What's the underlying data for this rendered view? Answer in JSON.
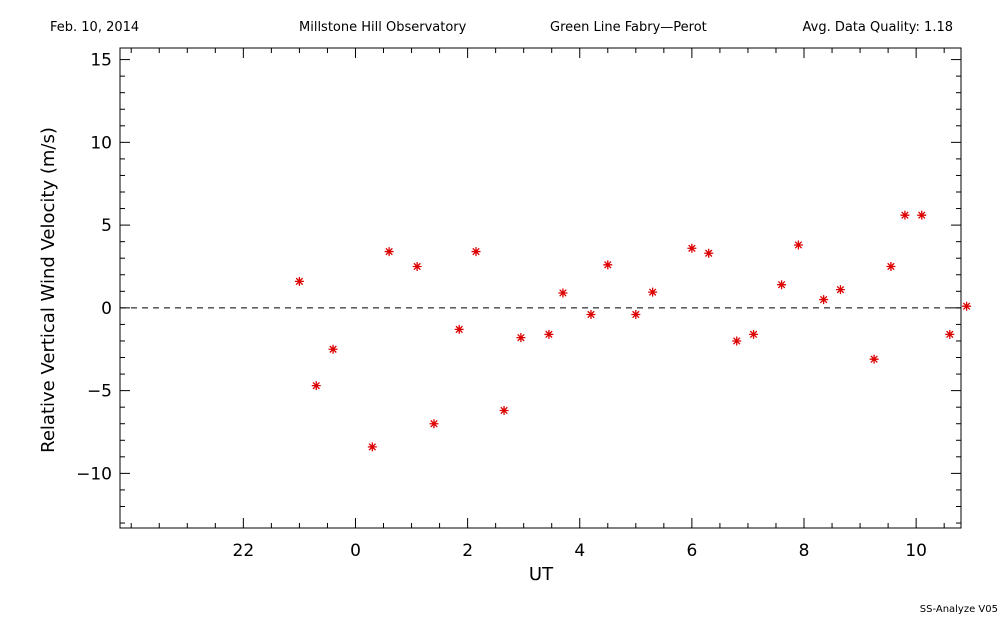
{
  "header": {
    "date": "Feb. 10, 2014",
    "observatory": "Millstone Hill Observatory",
    "instrument": "Green Line Fabry—Perot",
    "quality": "Avg. Data Quality: 1.18"
  },
  "footer": {
    "version": "SS-Analyze V05"
  },
  "chart_data": {
    "type": "scatter",
    "xlabel": "UT",
    "ylabel": "Relative Vertical Wind Velocity (m/s)",
    "xlim": [
      -2.2,
      12.8
    ],
    "ylim": [
      -13.3,
      15.7
    ],
    "x_ticks": [
      {
        "value": 0,
        "label": "22"
      },
      {
        "value": 2,
        "label": "0"
      },
      {
        "value": 4,
        "label": "2"
      },
      {
        "value": 6,
        "label": "4"
      },
      {
        "value": 8,
        "label": "6"
      },
      {
        "value": 10,
        "label": "8"
      },
      {
        "value": 12,
        "label": "10"
      }
    ],
    "y_ticks": [
      {
        "value": -10,
        "label": "−10"
      },
      {
        "value": -5,
        "label": "−5"
      },
      {
        "value": 0,
        "label": "0"
      },
      {
        "value": 5,
        "label": "5"
      },
      {
        "value": 10,
        "label": "10"
      },
      {
        "value": 15,
        "label": "15"
      }
    ],
    "reference_line": {
      "y": 0,
      "style": "dashed"
    },
    "marker": {
      "symbol": "asterisk",
      "color": "#dd0000"
    },
    "points": [
      {
        "x": 1.0,
        "y": 1.6
      },
      {
        "x": 1.3,
        "y": -4.7
      },
      {
        "x": 1.6,
        "y": -2.5
      },
      {
        "x": 2.3,
        "y": -8.4
      },
      {
        "x": 2.6,
        "y": 3.4
      },
      {
        "x": 3.1,
        "y": 2.5
      },
      {
        "x": 3.4,
        "y": -7.0
      },
      {
        "x": 3.85,
        "y": -1.3
      },
      {
        "x": 4.15,
        "y": 3.4
      },
      {
        "x": 4.65,
        "y": -6.2
      },
      {
        "x": 4.95,
        "y": -1.8
      },
      {
        "x": 5.45,
        "y": -1.6
      },
      {
        "x": 5.7,
        "y": 0.9
      },
      {
        "x": 6.2,
        "y": -0.4
      },
      {
        "x": 6.5,
        "y": 2.6
      },
      {
        "x": 7.0,
        "y": -0.4
      },
      {
        "x": 7.3,
        "y": 0.95
      },
      {
        "x": 8.0,
        "y": 3.6
      },
      {
        "x": 8.3,
        "y": 3.3
      },
      {
        "x": 8.8,
        "y": -2.0
      },
      {
        "x": 9.1,
        "y": -1.6
      },
      {
        "x": 9.6,
        "y": 1.4
      },
      {
        "x": 9.9,
        "y": 3.8
      },
      {
        "x": 10.35,
        "y": 0.5
      },
      {
        "x": 10.65,
        "y": 1.1
      },
      {
        "x": 11.25,
        "y": -3.1
      },
      {
        "x": 11.55,
        "y": 2.5
      },
      {
        "x": 11.8,
        "y": 5.6
      },
      {
        "x": 12.1,
        "y": 5.6
      },
      {
        "x": 12.6,
        "y": -1.6
      },
      {
        "x": 12.9,
        "y": 0.1
      }
    ]
  }
}
